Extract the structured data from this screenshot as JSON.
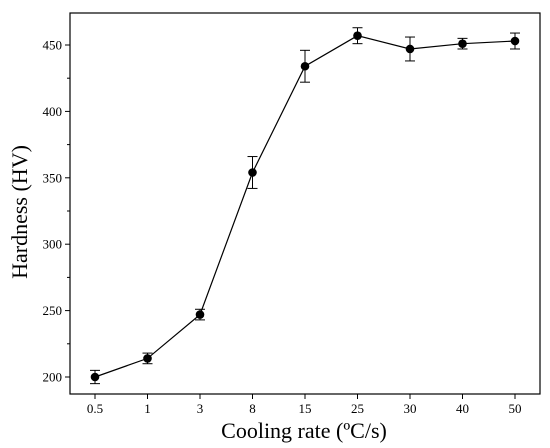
{
  "chart_data": {
    "type": "line",
    "title": "",
    "xlabel": "Cooling rate (ºC/s)",
    "ylabel": "Hardness (HV)",
    "categories": [
      "0.5",
      "1",
      "3",
      "8",
      "15",
      "25",
      "30",
      "40",
      "50"
    ],
    "series": [
      {
        "values": [
          200,
          214,
          247,
          354,
          434,
          457,
          447,
          451,
          453
        ],
        "errors": [
          5,
          4,
          4,
          12,
          12,
          6,
          9,
          4,
          6
        ],
        "marker": "circle",
        "color": "#000000"
      }
    ],
    "ylim": [
      190,
      470
    ],
    "yticks": [
      200,
      250,
      300,
      350,
      400,
      450
    ],
    "grid": false,
    "error_bars": true
  }
}
